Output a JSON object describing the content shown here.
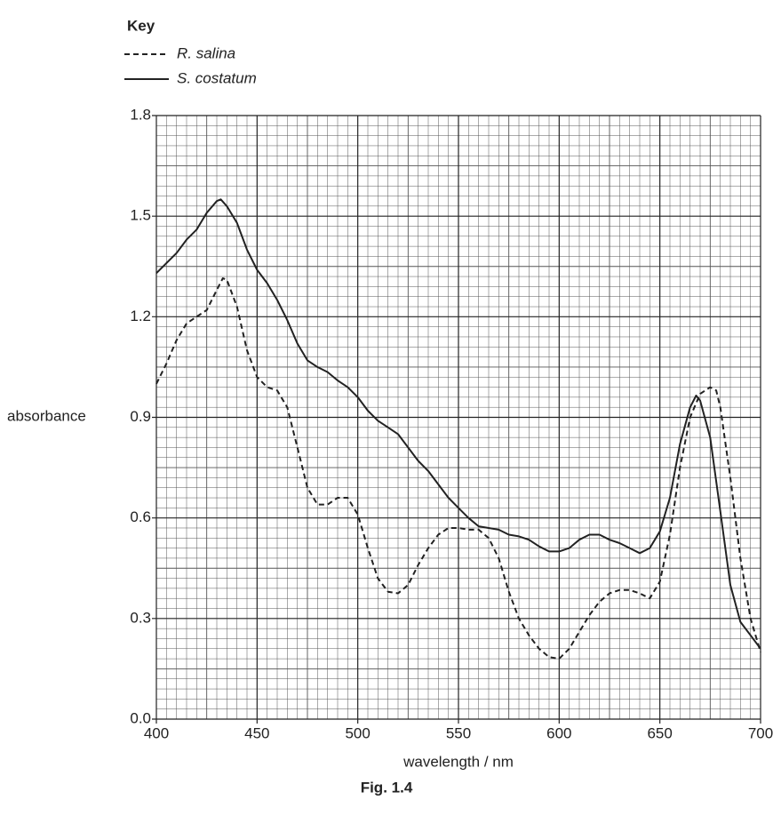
{
  "chart_data": {
    "type": "line",
    "title": "Fig. 1.4",
    "legend_title": "Key",
    "xlabel": "wavelength / nm",
    "ylabel": "absorbance",
    "xlim": [
      400,
      700
    ],
    "ylim": [
      0,
      1.8
    ],
    "xticks": [
      400,
      450,
      500,
      550,
      600,
      650,
      700
    ],
    "yticks": [
      {
        "value": 0,
        "label": "0.0"
      },
      0.3,
      0.6,
      0.9,
      1.2,
      1.5,
      1.8
    ],
    "grid": true,
    "series": [
      {
        "name": "R. salina",
        "color": "#222222",
        "dash": "dashed",
        "x": [
          400,
          405,
          410,
          415,
          420,
          425,
          430,
          433,
          435,
          440,
          445,
          450,
          455,
          460,
          465,
          470,
          475,
          480,
          485,
          490,
          495,
          500,
          505,
          510,
          515,
          520,
          525,
          530,
          535,
          540,
          545,
          550,
          555,
          560,
          565,
          570,
          575,
          580,
          585,
          590,
          595,
          600,
          605,
          610,
          615,
          620,
          625,
          630,
          635,
          640,
          645,
          650,
          655,
          660,
          665,
          670,
          675,
          678,
          680,
          685,
          690,
          695,
          700
        ],
        "values": [
          1.0,
          1.06,
          1.13,
          1.18,
          1.2,
          1.22,
          1.28,
          1.315,
          1.31,
          1.23,
          1.1,
          1.02,
          0.99,
          0.98,
          0.93,
          0.81,
          0.69,
          0.64,
          0.64,
          0.66,
          0.66,
          0.61,
          0.51,
          0.42,
          0.38,
          0.375,
          0.4,
          0.46,
          0.51,
          0.55,
          0.57,
          0.57,
          0.565,
          0.565,
          0.54,
          0.48,
          0.38,
          0.3,
          0.25,
          0.21,
          0.185,
          0.18,
          0.21,
          0.26,
          0.31,
          0.35,
          0.375,
          0.385,
          0.385,
          0.375,
          0.36,
          0.41,
          0.55,
          0.75,
          0.9,
          0.97,
          0.99,
          0.98,
          0.93,
          0.72,
          0.48,
          0.3,
          0.2
        ]
      },
      {
        "name": "S. costatum",
        "color": "#222222",
        "dash": "solid",
        "x": [
          400,
          410,
          415,
          420,
          425,
          430,
          432,
          435,
          440,
          445,
          450,
          455,
          460,
          465,
          470,
          475,
          480,
          485,
          490,
          495,
          500,
          505,
          510,
          515,
          520,
          525,
          530,
          535,
          540,
          545,
          550,
          555,
          560,
          565,
          570,
          575,
          580,
          585,
          590,
          595,
          600,
          605,
          610,
          615,
          620,
          625,
          630,
          635,
          640,
          645,
          650,
          655,
          660,
          665,
          668,
          670,
          675,
          680,
          685,
          690,
          695,
          700
        ],
        "values": [
          1.33,
          1.39,
          1.43,
          1.46,
          1.51,
          1.545,
          1.55,
          1.53,
          1.48,
          1.4,
          1.34,
          1.3,
          1.25,
          1.19,
          1.12,
          1.07,
          1.05,
          1.035,
          1.01,
          0.99,
          0.96,
          0.92,
          0.89,
          0.87,
          0.85,
          0.81,
          0.77,
          0.74,
          0.7,
          0.66,
          0.63,
          0.6,
          0.575,
          0.57,
          0.565,
          0.55,
          0.545,
          0.535,
          0.515,
          0.5,
          0.5,
          0.51,
          0.535,
          0.55,
          0.55,
          0.535,
          0.525,
          0.51,
          0.495,
          0.51,
          0.56,
          0.66,
          0.82,
          0.93,
          0.965,
          0.95,
          0.84,
          0.62,
          0.4,
          0.29,
          0.25,
          0.21
        ]
      }
    ]
  }
}
